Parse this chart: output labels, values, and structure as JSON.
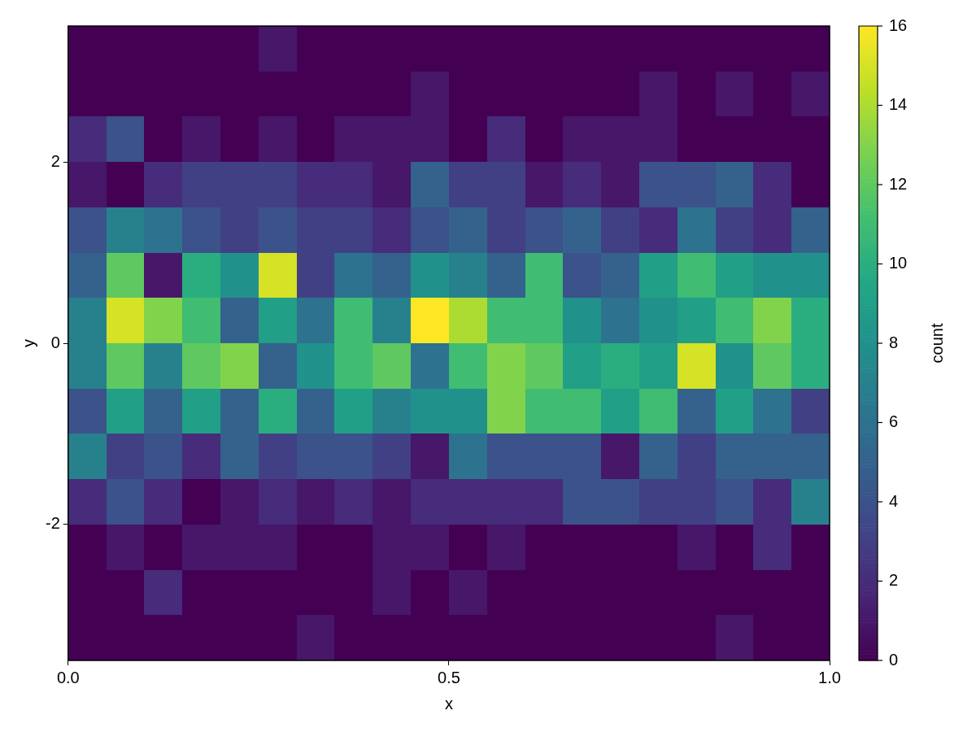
{
  "chart_data": {
    "type": "heatmap",
    "xlabel": "x",
    "ylabel": "y",
    "clabel": "count",
    "xlim": [
      0,
      1
    ],
    "xticks": [
      {
        "value": 0,
        "label": "0.0"
      },
      {
        "value": 0.5,
        "label": "0.5"
      },
      {
        "value": 1,
        "label": "1.0"
      }
    ],
    "ylim": [
      -3.5,
      3.5
    ],
    "yticks": [
      -2,
      0,
      2
    ],
    "clim": [
      0,
      16
    ],
    "cticks": [
      0,
      2,
      4,
      6,
      8,
      10,
      12,
      14,
      16
    ],
    "grid": false,
    "cells": [
      [
        0,
        0,
        0,
        0,
        0,
        1,
        0,
        0,
        0,
        0,
        0,
        0,
        0,
        0,
        0,
        0,
        0,
        0,
        0,
        0
      ],
      [
        0,
        0,
        0,
        0,
        0,
        0,
        0,
        0,
        0,
        1,
        0,
        0,
        0,
        0,
        0,
        1,
        0,
        1,
        0,
        1
      ],
      [
        2,
        4,
        0,
        1,
        0,
        1,
        0,
        1,
        1,
        1,
        0,
        2,
        0,
        1,
        1,
        1,
        0,
        0,
        0,
        0
      ],
      [
        1,
        0,
        2,
        3,
        3,
        3,
        2,
        2,
        1,
        5,
        3,
        3,
        1,
        2,
        1,
        4,
        4,
        5,
        2,
        0
      ],
      [
        4,
        7,
        6,
        4,
        3,
        4,
        3,
        3,
        2,
        4,
        5,
        3,
        4,
        5,
        3,
        2,
        6,
        3,
        2,
        5
      ],
      [
        5,
        12,
        1,
        10,
        8,
        15,
        3,
        6,
        5,
        8,
        7,
        5,
        11,
        4,
        5,
        9,
        11,
        9,
        8,
        8
      ],
      [
        7,
        15,
        13,
        11,
        5,
        9,
        6,
        11,
        7,
        16,
        14,
        11,
        11,
        8,
        6,
        8,
        9,
        11,
        13,
        10
      ],
      [
        7,
        12,
        7,
        12,
        13,
        5,
        8,
        11,
        12,
        6,
        11,
        13,
        12,
        9,
        10,
        9,
        15,
        8,
        12,
        10
      ],
      [
        4,
        9,
        5,
        9,
        5,
        10,
        5,
        9,
        7,
        8,
        8,
        13,
        11,
        11,
        9,
        11,
        5,
        9,
        6,
        3
      ],
      [
        7,
        3,
        4,
        2,
        5,
        3,
        4,
        4,
        3,
        1,
        6,
        4,
        4,
        4,
        1,
        5,
        3,
        5,
        5,
        5
      ],
      [
        2,
        4,
        2,
        0,
        1,
        2,
        1,
        2,
        1,
        2,
        2,
        2,
        2,
        4,
        4,
        3,
        3,
        4,
        2,
        7
      ],
      [
        0,
        1,
        0,
        1,
        1,
        1,
        0,
        0,
        1,
        1,
        0,
        1,
        0,
        0,
        0,
        0,
        1,
        0,
        2,
        0
      ],
      [
        0,
        0,
        2,
        0,
        0,
        0,
        0,
        0,
        1,
        0,
        1,
        0,
        0,
        0,
        0,
        0,
        0,
        0,
        0,
        0
      ],
      [
        0,
        0,
        0,
        0,
        0,
        0,
        1,
        0,
        0,
        0,
        0,
        0,
        0,
        0,
        0,
        0,
        0,
        1,
        0,
        0
      ]
    ]
  }
}
